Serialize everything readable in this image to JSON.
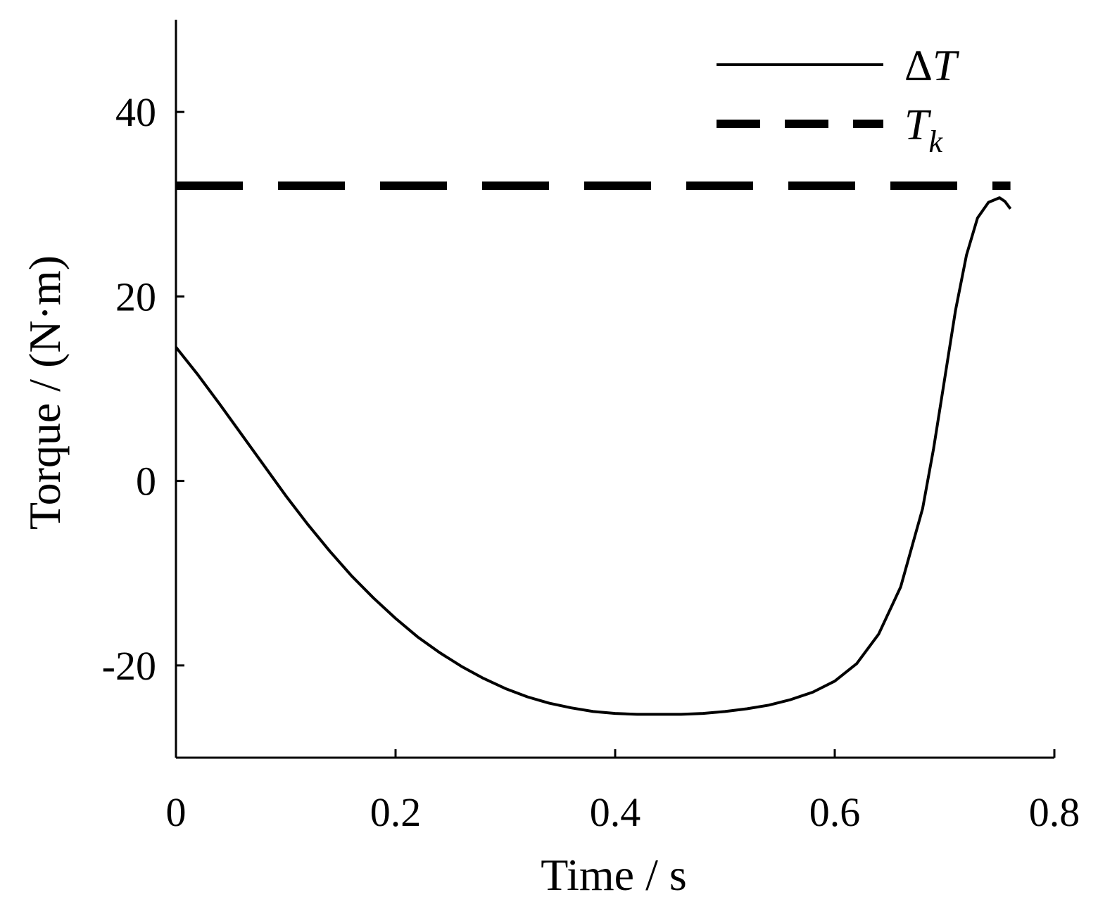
{
  "chart_data": {
    "type": "line",
    "xlabel": "Time / s",
    "ylabel": "Torque / (N·m)",
    "xlim": [
      0,
      0.8
    ],
    "ylim": [
      -30,
      50
    ],
    "xticks": [
      0,
      0.2,
      0.4,
      0.6,
      0.8
    ],
    "xtick_labels": [
      "0",
      "0.2",
      "0.4",
      "0.6",
      "0.8"
    ],
    "yticks": [
      -20,
      0,
      20,
      40
    ],
    "ytick_labels": [
      "-20",
      "0",
      "20",
      "40"
    ],
    "grid": false,
    "legend_position": "top-right",
    "series": [
      {
        "name": "ΔT",
        "legend_main": "ΔT",
        "legend_sub": "",
        "style": "solid",
        "color": "#000000",
        "x": [
          0,
          0.02,
          0.04,
          0.06,
          0.08,
          0.1,
          0.12,
          0.14,
          0.16,
          0.18,
          0.2,
          0.22,
          0.24,
          0.26,
          0.28,
          0.3,
          0.32,
          0.34,
          0.36,
          0.38,
          0.4,
          0.42,
          0.44,
          0.46,
          0.48,
          0.5,
          0.52,
          0.54,
          0.56,
          0.58,
          0.6,
          0.62,
          0.64,
          0.66,
          0.68,
          0.69,
          0.7,
          0.71,
          0.72,
          0.73,
          0.74,
          0.75,
          0.755,
          0.76
        ],
        "y": [
          14.5,
          11.5,
          8.3,
          5.0,
          1.7,
          -1.6,
          -4.7,
          -7.6,
          -10.3,
          -12.7,
          -14.9,
          -16.9,
          -18.6,
          -20.1,
          -21.4,
          -22.5,
          -23.4,
          -24.1,
          -24.6,
          -25.0,
          -25.2,
          -25.3,
          -25.3,
          -25.3,
          -25.2,
          -25.0,
          -24.7,
          -24.3,
          -23.7,
          -22.9,
          -21.7,
          -19.8,
          -16.6,
          -11.5,
          -3.0,
          3.5,
          11.0,
          18.5,
          24.5,
          28.5,
          30.2,
          30.7,
          30.3,
          29.5
        ]
      },
      {
        "name": "T",
        "legend_main": "T",
        "legend_sub": "k",
        "style": "dashed",
        "color": "#000000",
        "x": [
          0,
          0.76
        ],
        "y": [
          32,
          32
        ]
      }
    ]
  }
}
